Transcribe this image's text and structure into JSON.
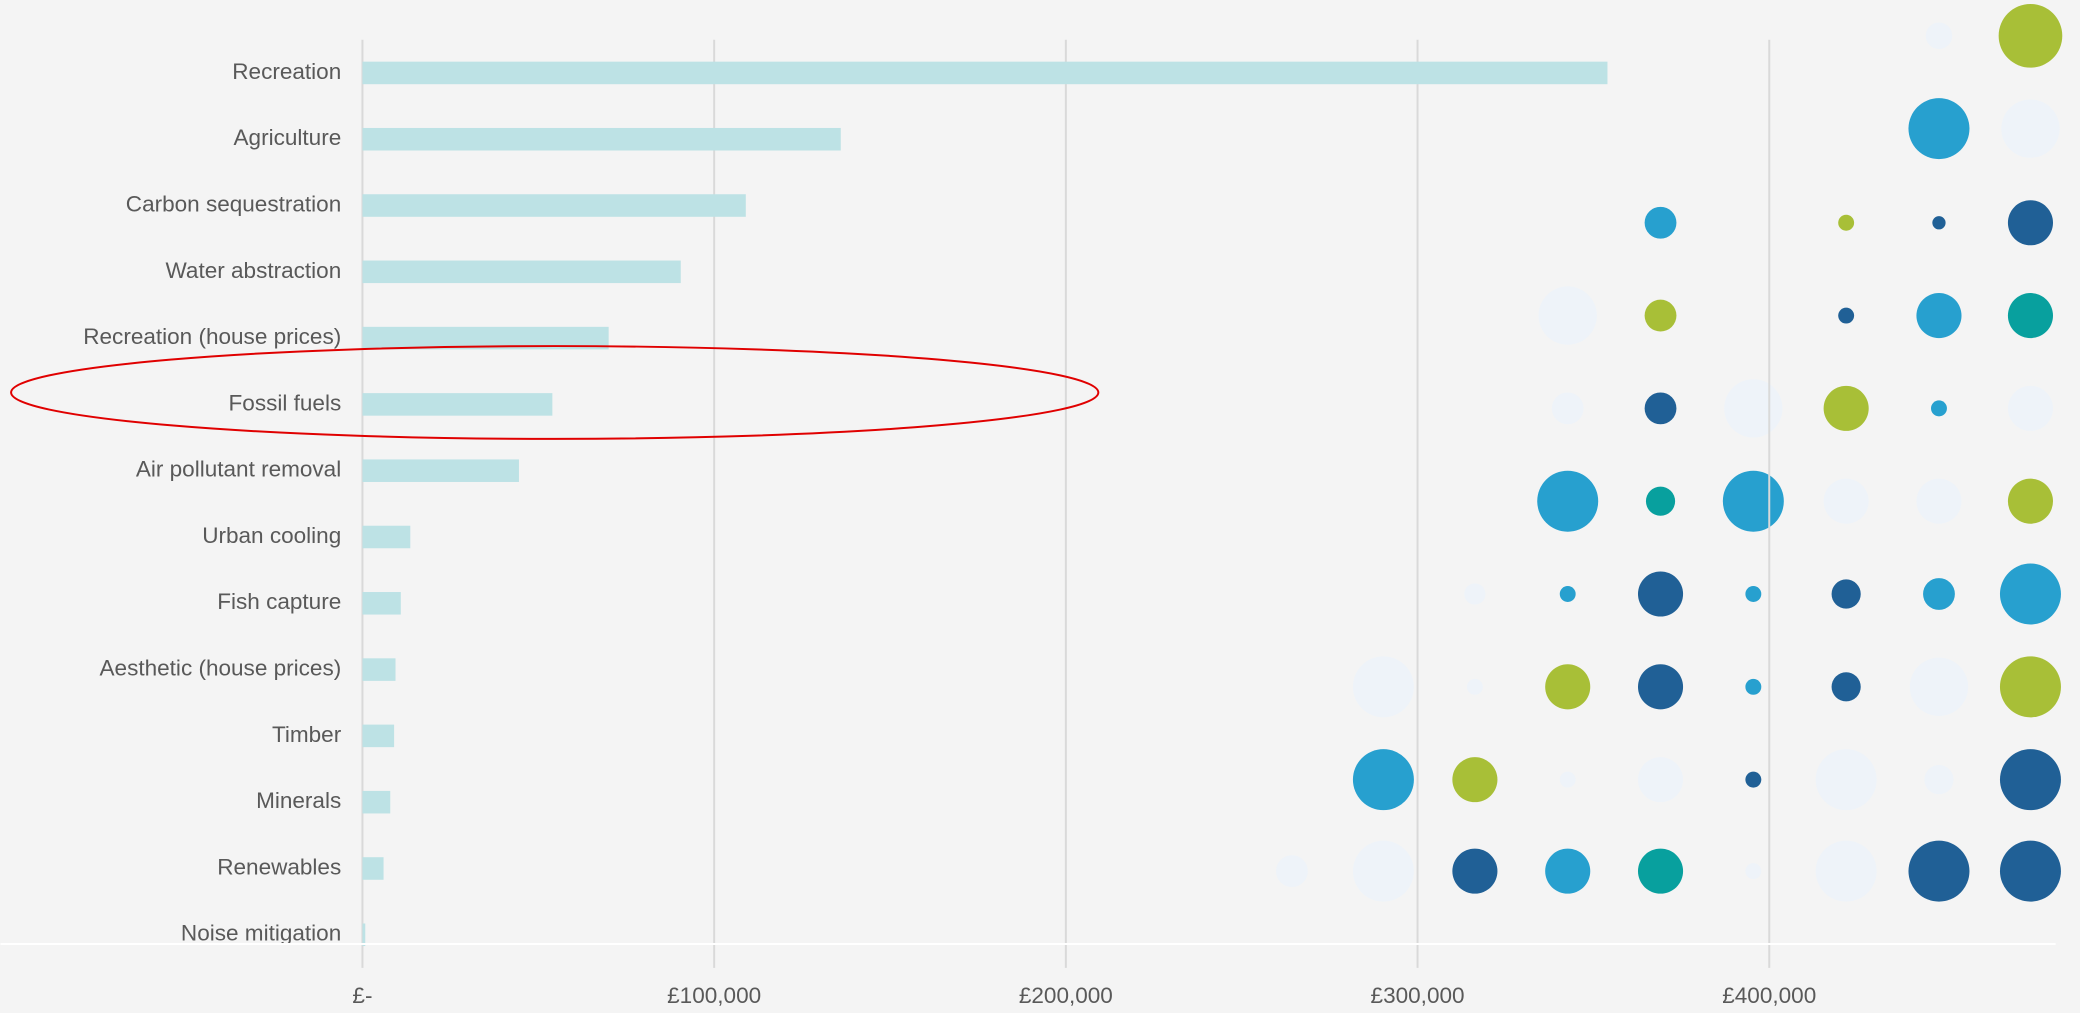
{
  "chart_data": {
    "type": "barh",
    "categories": [
      "Recreation",
      "Agriculture",
      "Carbon sequestration",
      "Water abstraction",
      "Recreation (house prices)",
      "Fossil fuels",
      "Air pollutant removal",
      "Urban cooling",
      "Fish capture",
      "Aesthetic (house prices)",
      "Timber",
      "Minerals",
      "Renewables",
      "Noise mitigation"
    ],
    "values": [
      354000,
      136000,
      109000,
      90500,
      70000,
      54000,
      44500,
      13600,
      10900,
      9400,
      9000,
      7900,
      6000,
      800
    ],
    "color": "#bde2e5",
    "xlim": [
      0,
      480000
    ],
    "xticks": [
      {
        "value": 0,
        "label": "£-"
      },
      {
        "value": 100000,
        "label": "£100,000"
      },
      {
        "value": 200000,
        "label": "£200,000"
      },
      {
        "value": 300000,
        "label": "£300,000"
      },
      {
        "value": 400000,
        "label": "£400,000"
      }
    ],
    "grid": true
  }
}
